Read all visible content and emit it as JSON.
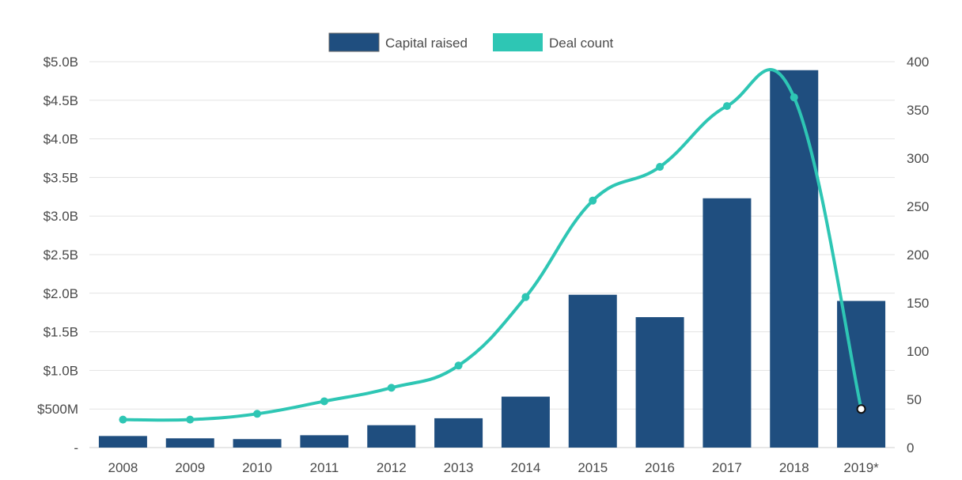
{
  "chart_data": {
    "type": "bar",
    "categories": [
      "2008",
      "2009",
      "2010",
      "2011",
      "2012",
      "2013",
      "2014",
      "2015",
      "2016",
      "2017",
      "2018",
      "2019*"
    ],
    "series": [
      {
        "name": "Capital raised",
        "kind": "bar",
        "axis": "left",
        "color": "#1f4e7f",
        "values": [
          0.15,
          0.12,
          0.11,
          0.16,
          0.29,
          0.38,
          0.66,
          1.98,
          1.69,
          3.23,
          4.89,
          1.9
        ]
      },
      {
        "name": "Deal count",
        "kind": "line",
        "axis": "right",
        "color": "#2ec6b4",
        "values": [
          29,
          29,
          35,
          48,
          62,
          85,
          156,
          256,
          291,
          354,
          363,
          40
        ]
      }
    ],
    "y_left": {
      "unit": "billion USD",
      "ylim": [
        0,
        5
      ],
      "ticks": [
        0,
        0.5,
        1,
        1.5,
        2,
        2.5,
        3,
        3.5,
        4,
        4.5,
        5
      ],
      "tick_labels": [
        "-",
        "$500M",
        "$1.0B",
        "$1.5B",
        "$2.0B",
        "$2.5B",
        "$3.0B",
        "$3.5B",
        "$4.0B",
        "$4.5B",
        "$5.0B"
      ]
    },
    "y_right": {
      "ylim": [
        0,
        400
      ],
      "ticks": [
        0,
        50,
        100,
        150,
        200,
        250,
        300,
        350,
        400
      ],
      "tick_labels": [
        "0",
        "50",
        "100",
        "150",
        "200",
        "250",
        "300",
        "350",
        "400"
      ]
    },
    "grid": true,
    "legend_position": "top-center",
    "highlighted_point": {
      "series": "Deal count",
      "category": "2019*"
    }
  }
}
